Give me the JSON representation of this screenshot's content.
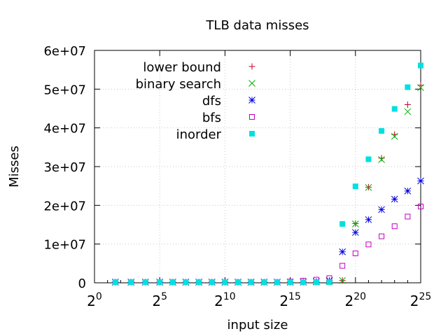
{
  "chart_data": {
    "type": "scatter",
    "title": "TLB data misses",
    "xlabel": "input size",
    "ylabel": "Misses",
    "x_scale": "log2",
    "x_range_exponent": [
      0,
      25
    ],
    "x_ticks": [
      {
        "base": "2",
        "exp": "0",
        "value": 0
      },
      {
        "base": "2",
        "exp": "5",
        "value": 5
      },
      {
        "base": "2",
        "exp": "10",
        "value": 10
      },
      {
        "base": "2",
        "exp": "15",
        "value": 15
      },
      {
        "base": "2",
        "exp": "20",
        "value": 20
      },
      {
        "base": "2",
        "exp": "25",
        "value": 25
      }
    ],
    "ylim": [
      0,
      60000000
    ],
    "y_ticks": [
      {
        "label": "0",
        "value": 0
      },
      {
        "label": "1e+07",
        "value": 10000000
      },
      {
        "label": "2e+07",
        "value": 20000000
      },
      {
        "label": "3e+07",
        "value": 30000000
      },
      {
        "label": "4e+07",
        "value": 40000000
      },
      {
        "label": "5e+07",
        "value": 50000000
      },
      {
        "label": "6e+07",
        "value": 60000000
      }
    ],
    "grid": true,
    "legend_position": "top-left",
    "series": [
      {
        "name": "lower bound",
        "marker": "plus",
        "color": "#c0002a",
        "x_exp": [
          1.6,
          2.8,
          3.9,
          5,
          6,
          7,
          8,
          9,
          10,
          11,
          12,
          13,
          14,
          15,
          16,
          17,
          18,
          19,
          20,
          21,
          22,
          23,
          24,
          25
        ],
        "values": [
          20000,
          20000,
          20000,
          20000,
          20000,
          20000,
          20000,
          20000,
          20000,
          20000,
          20000,
          20000,
          50000,
          80000,
          120000,
          200000,
          350000,
          600000,
          15300000,
          24700000,
          32200000,
          38300000,
          46000000,
          51000000
        ]
      },
      {
        "name": "binary search",
        "marker": "x",
        "color": "#00b000",
        "x_exp": [
          1.6,
          2.8,
          3.9,
          5,
          6,
          7,
          8,
          9,
          10,
          11,
          12,
          13,
          14,
          15,
          16,
          17,
          18,
          19,
          20,
          21,
          22,
          23,
          24,
          25
        ],
        "values": [
          20000,
          20000,
          20000,
          20000,
          20000,
          20000,
          20000,
          20000,
          20000,
          20000,
          20000,
          20000,
          50000,
          80000,
          120000,
          200000,
          350000,
          600000,
          15200000,
          24600000,
          31800000,
          37800000,
          44200000,
          50400000
        ]
      },
      {
        "name": "dfs",
        "marker": "star",
        "color": "#0000e0",
        "x_exp": [
          1.6,
          2.8,
          3.9,
          5,
          6,
          7,
          8,
          9,
          10,
          11,
          12,
          13,
          14,
          15,
          16,
          17,
          18,
          19,
          20,
          21,
          22,
          23,
          24,
          25
        ],
        "values": [
          20000,
          20000,
          20000,
          20000,
          20000,
          20000,
          20000,
          20000,
          20000,
          20000,
          20000,
          20000,
          50000,
          100000,
          200000,
          350000,
          600000,
          8000000,
          13000000,
          16300000,
          18900000,
          21600000,
          23700000,
          26300000
        ]
      },
      {
        "name": "bfs",
        "marker": "square-open",
        "color": "#c000c0",
        "x_exp": [
          1.6,
          2.8,
          3.9,
          5,
          6,
          7,
          8,
          9,
          10,
          11,
          12,
          13,
          14,
          15,
          16,
          17,
          18,
          19,
          20,
          21,
          22,
          23,
          24,
          25
        ],
        "values": [
          20000,
          20000,
          20000,
          20000,
          20000,
          20000,
          20000,
          20000,
          20000,
          20000,
          20000,
          50000,
          150000,
          300000,
          550000,
          800000,
          1200000,
          4400000,
          7600000,
          9900000,
          12000000,
          14600000,
          17100000,
          19700000
        ]
      },
      {
        "name": "inorder",
        "marker": "square-filled",
        "color": "#00e0e0",
        "x_exp": [
          1.6,
          2.8,
          3.9,
          5,
          6,
          7,
          8,
          9,
          10,
          11,
          12,
          13,
          14,
          15,
          16,
          17,
          18,
          19,
          20,
          21,
          22,
          23,
          24,
          25
        ],
        "values": [
          20000,
          20000,
          20000,
          20000,
          20000,
          20000,
          20000,
          20000,
          20000,
          20000,
          20000,
          20000,
          20000,
          20000,
          20000,
          20000,
          20000,
          15200000,
          24900000,
          31900000,
          39200000,
          44900000,
          50500000,
          56100000
        ]
      }
    ]
  }
}
